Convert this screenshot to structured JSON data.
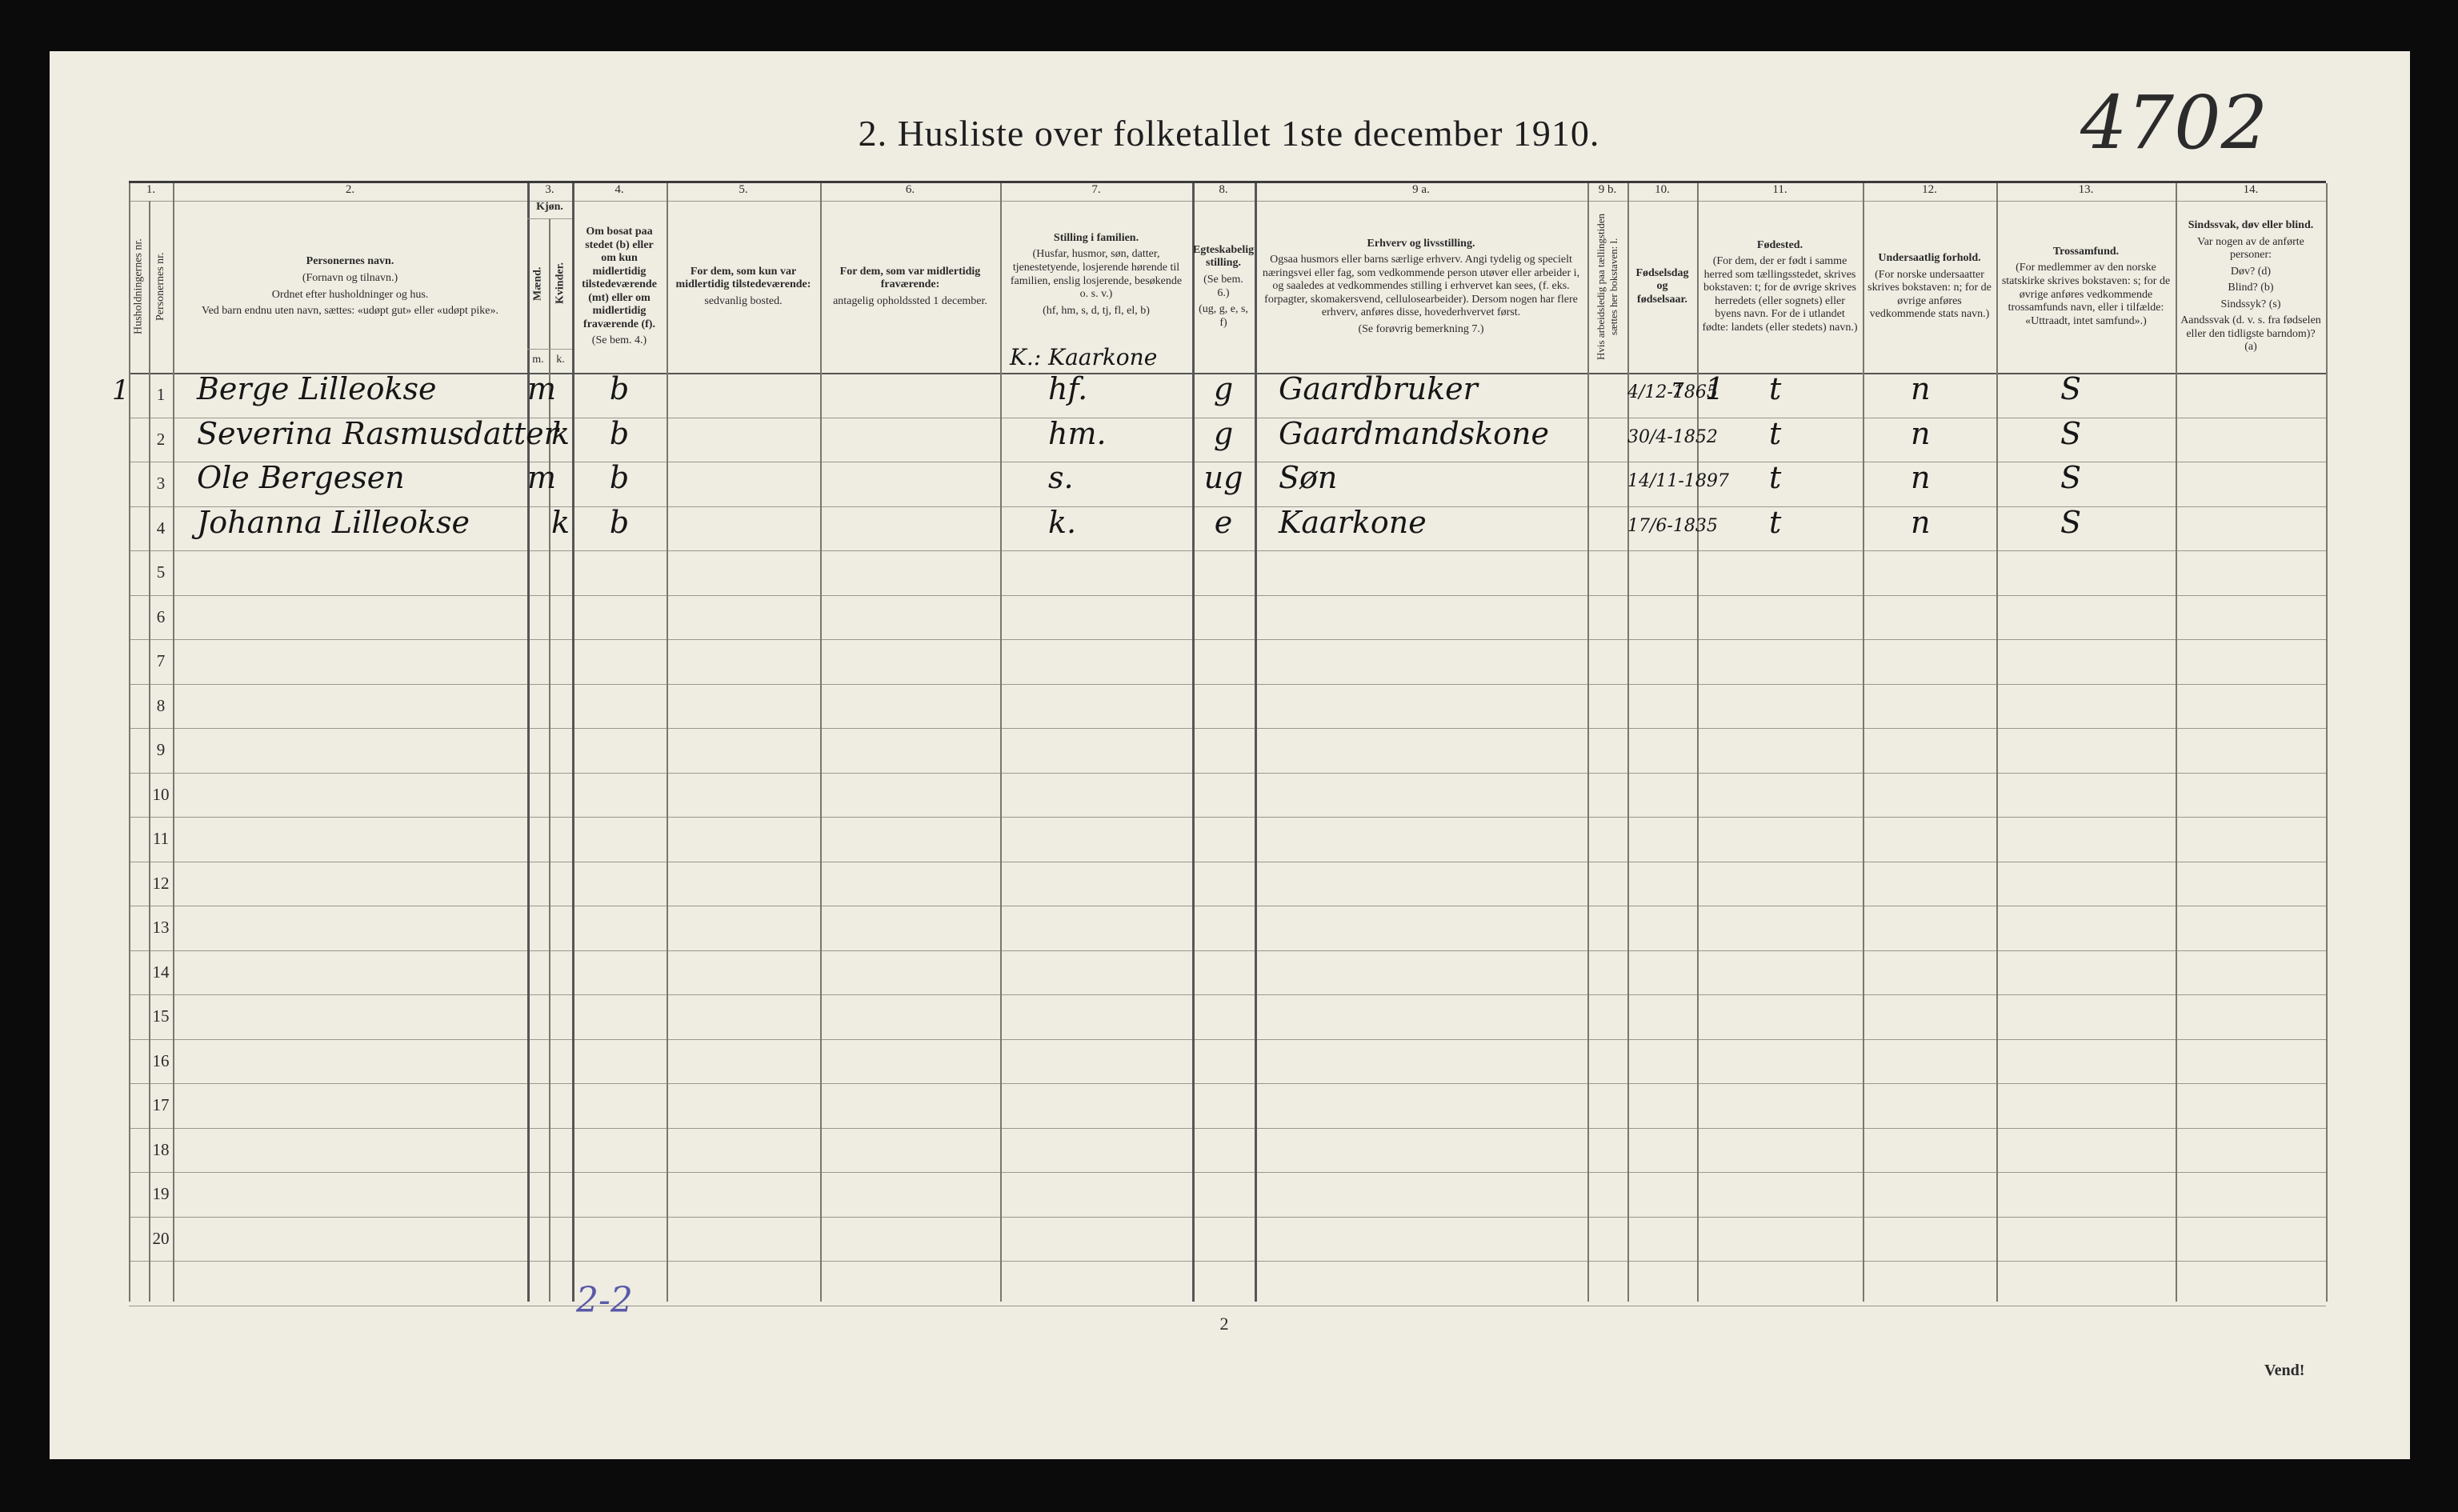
{
  "header": {
    "title": "2.  Husliste over folketallet 1ste december 1910."
  },
  "annotations": [
    "4702",
    "K.: Kaarkone",
    "7",
    "2-2"
  ],
  "table": {
    "col1": {
      "number": "1.",
      "sub": [
        "Husholdningernes nr.",
        "Personernes nr."
      ]
    },
    "sex": {
      "number": "3.",
      "label": "Kjøn.",
      "sub": [
        {
          "text": "Mænd.",
          "abbr": "m."
        },
        {
          "text": "Kvinder.",
          "abbr": "k."
        }
      ]
    },
    "columns": [
      {
        "number": "2.",
        "lines": [
          "Personernes navn.",
          "(Fornavn og tilnavn.)",
          "Ordnet efter husholdninger og hus.",
          "Ved barn endnu uten navn, sættes: «udøpt gut» eller «udøpt pike»."
        ]
      },
      {
        "number": "4.",
        "lines": [
          "Om bosat paa stedet (b) eller om kun midlertidig tilstedeværende (mt) eller om midlertidig fraværende (f).",
          "(Se bem. 4.)"
        ]
      },
      {
        "number": "5.",
        "lines": [
          "For dem, som kun var midlertidig tilstedeværende:",
          "sedvanlig bosted."
        ]
      },
      {
        "number": "6.",
        "lines": [
          "For dem, som var midlertidig fraværende:",
          "antagelig opholdssted 1 december."
        ]
      },
      {
        "number": "7.",
        "lines": [
          "Stilling i familien.",
          "(Husfar, husmor, søn, datter, tjenestetyende, losjerende hørende til familien, enslig losjerende, besøkende o. s. v.)",
          "(hf, hm, s, d, tj, fl, el, b)"
        ]
      },
      {
        "number": "8.",
        "lines": [
          "Egteskabelig stilling.",
          "(Se bem. 6.)",
          "(ug, g, e, s, f)"
        ]
      },
      {
        "number": "9 a.",
        "lines": [
          "Erhverv og livsstilling.",
          "Ogsaa husmors eller barns særlige erhverv. Angi tydelig og specielt næringsvei eller fag, som vedkommende person utøver eller arbeider i, og saaledes at vedkommendes stilling i erhvervet kan sees, (f. eks. forpagter, skomakersvend, cellulosearbeider). Dersom nogen har flere erhverv, anføres disse, hovederhvervet først.",
          "(Se forøvrig bemerkning 7.)"
        ]
      },
      {
        "number": "9 b.",
        "lines": [
          "Hvis arbeidsledig paa tællingstiden sættes her bokstaven: l."
        ]
      },
      {
        "number": "10.",
        "lines": [
          "Fødselsdag og fødselsaar."
        ]
      },
      {
        "number": "11.",
        "lines": [
          "Fødested.",
          "(For dem, der er født i samme herred som tællingsstedet, skrives bokstaven: t; for de øvrige skrives herredets (eller sognets) eller byens navn. For de i utlandet fødte: landets (eller stedets) navn.)"
        ]
      },
      {
        "number": "12.",
        "lines": [
          "Undersaatlig forhold.",
          "(For norske undersaatter skrives bokstaven: n; for de øvrige anføres vedkommende stats navn.)"
        ]
      },
      {
        "number": "13.",
        "lines": [
          "Trossamfund.",
          "(For medlemmer av den norske statskirke skrives bokstaven: s; for de øvrige anføres vedkommende trossamfunds navn, eller i tilfælde: «Uttraadt, intet samfund».)"
        ]
      },
      {
        "number": "14.",
        "lines": [
          "Sindssvak, døv eller blind.",
          "Var nogen av de anførte personer:",
          "Døv? (d)",
          "Blind? (b)",
          "Sindssyk? (s)",
          "Aandssvak (d. v. s. fra fødselen eller den tidligste barndom)? (a)"
        ]
      }
    ],
    "rows": [
      {
        "household": "1",
        "person": "1",
        "name": "Berge Lilleokse",
        "male": "m",
        "residence": "b",
        "position": "hf.",
        "marital": "g",
        "occupation": "Gaardbruker",
        "birth": "4/12-1865",
        "mark": "1",
        "birthplace": "t",
        "citizenship": "n",
        "religion": "S"
      },
      {
        "person": "2",
        "name": "Severina Rasmusdatter",
        "female": "k",
        "residence": "b",
        "position": "hm.",
        "marital": "g",
        "occupation": "Gaardmandskone",
        "birth": "30/4-1852",
        "birthplace": "t",
        "citizenship": "n",
        "religion": "S"
      },
      {
        "person": "3",
        "name": "Ole Bergesen",
        "male": "m",
        "residence": "b",
        "position": "s.",
        "marital": "ug",
        "occupation": "Søn",
        "birth": "14/11-1897",
        "birthplace": "t",
        "citizenship": "n",
        "religion": "S"
      },
      {
        "person": "4",
        "name": "Johanna Lilleokse",
        "female": "k",
        "residence": "b",
        "position": "k.",
        "marital": "e",
        "occupation": "Kaarkone",
        "birth": "17/6-1835",
        "birthplace": "t",
        "citizenship": "n",
        "religion": "S"
      },
      {
        "person": "5"
      },
      {
        "person": "6"
      },
      {
        "person": "7"
      },
      {
        "person": "8"
      },
      {
        "person": "9"
      },
      {
        "person": "10"
      },
      {
        "person": "11"
      },
      {
        "person": "12"
      },
      {
        "person": "13"
      },
      {
        "person": "14"
      },
      {
        "person": "15"
      },
      {
        "person": "16"
      },
      {
        "person": "17"
      },
      {
        "person": "18"
      },
      {
        "person": "19"
      },
      {
        "person": "20"
      }
    ]
  },
  "footer": {
    "page": "2",
    "turn": "Vend!"
  }
}
